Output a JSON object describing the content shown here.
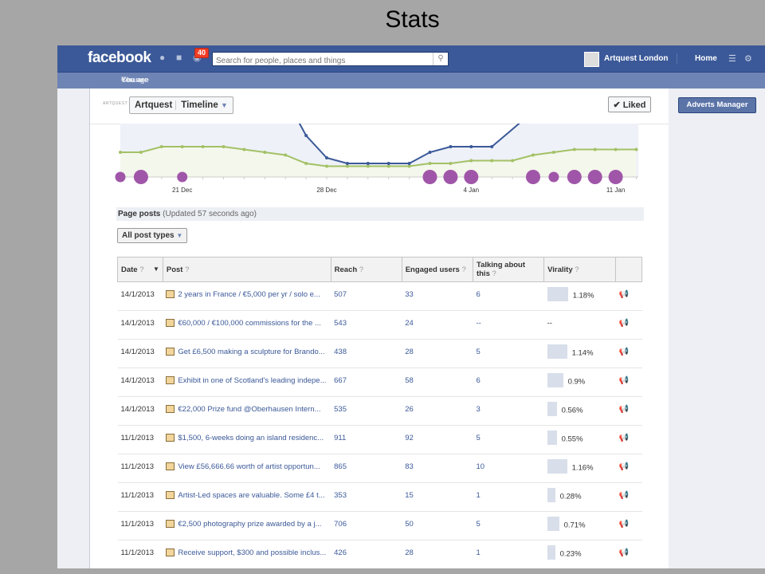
{
  "slide_title": "Stats",
  "topbar": {
    "logo": "facebook",
    "notifications_count": "40",
    "search_placeholder": "Search for people, places and things",
    "page_name": "Artquest London",
    "home_label": "Home"
  },
  "notice": {
    "text": "You are posting, commenting and liking as Artquest —",
    "change_link": "Change to Artquest London"
  },
  "page_header": {
    "small_logo": "ARTQUEST",
    "page_name": "Artquest",
    "view": "Timeline",
    "liked_label": "Liked"
  },
  "right": {
    "adverts_manager": "Adverts Manager"
  },
  "colors": {
    "fb_blue": "#3b5998",
    "line_blue": "#3b5998",
    "line_green": "#a3c165",
    "dot_purple": "#a056a8"
  },
  "chart_data": {
    "type": "line",
    "x_tick_labels": [
      "21 Dec",
      "28 Dec",
      "4 Jan",
      "11 Jan"
    ],
    "series": [
      {
        "values": [
          null,
          null,
          null,
          null,
          null,
          null,
          null,
          null,
          null,
          8,
          4,
          3,
          3,
          3,
          3,
          5,
          6,
          6,
          6,
          null,
          null,
          null,
          null,
          null,
          null,
          null
        ]
      },
      {
        "values": [
          5,
          5,
          6,
          6,
          6,
          6,
          5.5,
          5,
          4.5,
          3,
          2.5,
          2.5,
          2.5,
          2.5,
          2.5,
          3,
          3,
          3.5,
          3.5,
          3.5,
          4.5,
          5,
          5.5,
          5.5,
          5.5,
          5.5
        ]
      }
    ],
    "post_markers": [
      {
        "day": 0,
        "size": "small"
      },
      {
        "day": 1,
        "size": "large"
      },
      {
        "day": 3,
        "size": "small"
      },
      {
        "day": 15,
        "size": "large"
      },
      {
        "day": 16,
        "size": "large"
      },
      {
        "day": 17,
        "size": "large"
      },
      {
        "day": 20,
        "size": "large"
      },
      {
        "day": 21,
        "size": "small"
      },
      {
        "day": 22,
        "size": "large"
      },
      {
        "day": 23,
        "size": "large"
      },
      {
        "day": 24,
        "size": "large"
      }
    ]
  },
  "page_posts": {
    "title": "Page posts",
    "updated": "(Updated 57 seconds ago)",
    "filter": "All post types",
    "columns": [
      "Date",
      "Post",
      "Reach",
      "Engaged users",
      "Talking about this",
      "Virality"
    ],
    "rows": [
      {
        "date": "14/1/2013",
        "post": "2 years in France / €5,000 per yr / solo e...",
        "reach": "507",
        "engaged": "33",
        "talking": "6",
        "virality": "1.18%",
        "vir_value": 1.18
      },
      {
        "date": "14/1/2013",
        "post": "€60,000 / €100,000 commissions for the ...",
        "reach": "543",
        "engaged": "24",
        "talking": "--",
        "virality": "--",
        "vir_value": 0
      },
      {
        "date": "14/1/2013",
        "post": "Get £6,500 making a sculpture for Brando...",
        "reach": "438",
        "engaged": "28",
        "talking": "5",
        "virality": "1.14%",
        "vir_value": 1.14
      },
      {
        "date": "14/1/2013",
        "post": "Exhibit in one of Scotland's leading indepe...",
        "reach": "667",
        "engaged": "58",
        "talking": "6",
        "virality": "0.9%",
        "vir_value": 0.9
      },
      {
        "date": "14/1/2013",
        "post": "€22,000 Prize fund @Oberhausen Intern...",
        "reach": "535",
        "engaged": "26",
        "talking": "3",
        "virality": "0.56%",
        "vir_value": 0.56
      },
      {
        "date": "11/1/2013",
        "post": "$1,500, 6-weeks doing an island residenc...",
        "reach": "911",
        "engaged": "92",
        "talking": "5",
        "virality": "0.55%",
        "vir_value": 0.55
      },
      {
        "date": "11/1/2013",
        "post": "View £56,666.66 worth of artist opportun...",
        "reach": "865",
        "engaged": "83",
        "talking": "10",
        "virality": "1.16%",
        "vir_value": 1.16
      },
      {
        "date": "11/1/2013",
        "post": "Artist-Led spaces are valuable. Some £4 t...",
        "reach": "353",
        "engaged": "15",
        "talking": "1",
        "virality": "0.28%",
        "vir_value": 0.28
      },
      {
        "date": "11/1/2013",
        "post": "€2,500 photography prize awarded by a j...",
        "reach": "706",
        "engaged": "50",
        "talking": "5",
        "virality": "0.71%",
        "vir_value": 0.71
      },
      {
        "date": "11/1/2013",
        "post": "Receive support, $300 and possible inclus...",
        "reach": "426",
        "engaged": "28",
        "talking": "1",
        "virality": "0.23%",
        "vir_value": 0.23
      }
    ]
  }
}
